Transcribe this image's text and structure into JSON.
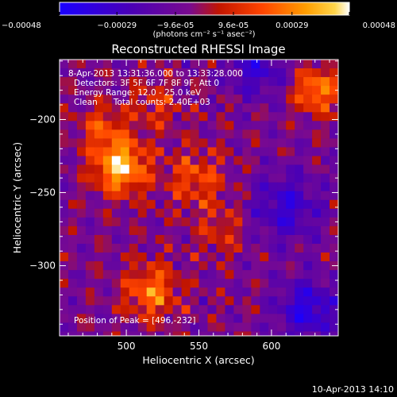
{
  "chart_data": {
    "type": "heatmap",
    "title": "Reconstructed RHESSI Image",
    "xlabel": "Heliocentric X (arcsec)",
    "ylabel": "Heliocentric Y (arcsec)",
    "xlim": [
      454,
      646
    ],
    "ylim": [
      -348,
      -159
    ],
    "x_ticks": [
      "500",
      "550",
      "600"
    ],
    "x_tick_values": [
      500,
      550,
      600
    ],
    "y_ticks": [
      "-200",
      "-250",
      "-300"
    ],
    "y_tick_values": [
      -200,
      -250,
      -300
    ],
    "colorbar": {
      "labels": [
        "-0.00048",
        "-0.00029",
        "-9.6e-05",
        "9.6e-05",
        "0.00029",
        "0.00048"
      ],
      "values": [
        -0.00048,
        -0.00029,
        -9.6e-05,
        9.6e-05,
        0.00029,
        0.00048
      ],
      "unit": "(photons cm⁻² s⁻¹ asec⁻²)"
    },
    "annotations": [
      "8-Apr-2013 13:31:36.000 to 13:33:28.000",
      "Detectors: 3F 5F 6F 7F 8F 9F, Att 0",
      "Energy Range: 12.0 - 25.0 keV",
      "Clean      Total counts: 2.40E+03"
    ],
    "peak_label": "Position of Peak = [496,-232]",
    "peak": [
      496,
      -232
    ],
    "sources": [
      {
        "x": 496,
        "y": -232,
        "amp": 0.00048,
        "sigma": 13
      },
      {
        "x": 483,
        "y": -205,
        "amp": 0.00022,
        "sigma": 11
      },
      {
        "x": 520,
        "y": -190,
        "amp": 0.00018,
        "sigma": 12
      },
      {
        "x": 517,
        "y": -318,
        "amp": 0.00033,
        "sigma": 13
      },
      {
        "x": 548,
        "y": -240,
        "amp": 0.00024,
        "sigma": 14
      },
      {
        "x": 565,
        "y": -275,
        "amp": 0.00016,
        "sigma": 12
      },
      {
        "x": 631,
        "y": -180,
        "amp": 0.00036,
        "sigma": 11
      },
      {
        "x": 590,
        "y": -165,
        "amp": -0.00024,
        "sigma": 14
      },
      {
        "x": 610,
        "y": -260,
        "amp": -0.00026,
        "sigma": 16
      },
      {
        "x": 625,
        "y": -330,
        "amp": -0.00032,
        "sigma": 14
      }
    ]
  },
  "footer": {
    "timestamp": "10-Apr-2013 14:10"
  },
  "colors": {
    "background": "#000000",
    "text": "#ffffff",
    "colormap": [
      "#1a00ff",
      "#4b00b5",
      "#7a0a8f",
      "#c21500",
      "#ff4500",
      "#ff9e00",
      "#ffd54a",
      "#ffffff"
    ]
  }
}
